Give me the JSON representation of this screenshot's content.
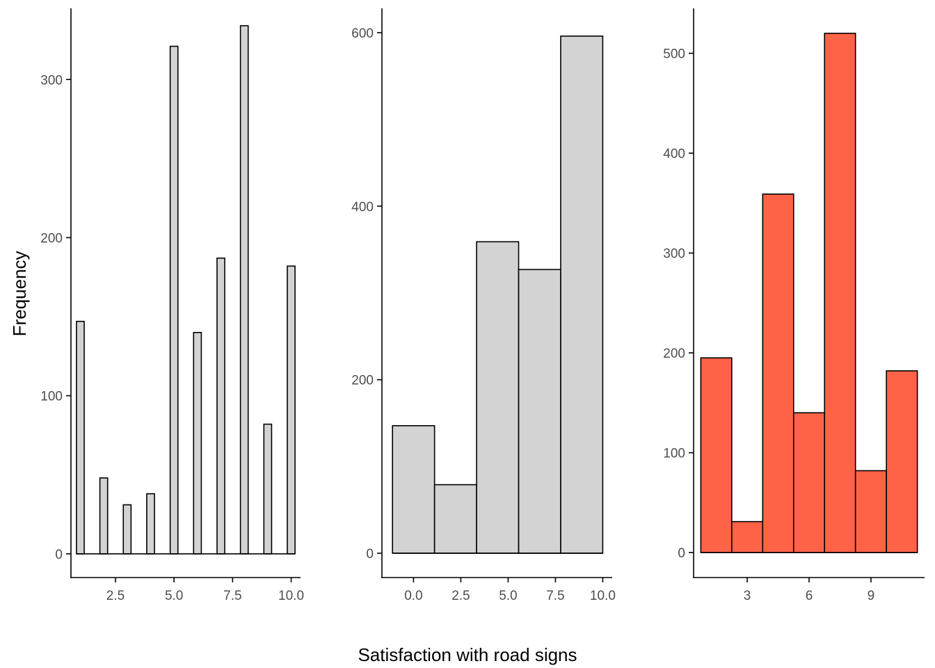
{
  "figure": {
    "ylabel": "Frequency",
    "xlabel": "Satisfaction with road signs"
  },
  "colors": {
    "bar_outline": "#000000",
    "axis": "#000000",
    "tick_text": "#4d4d4d"
  },
  "chart_data": [
    {
      "type": "bar",
      "fill": "#d3d3d3",
      "xlim": [
        0.6,
        10.4
      ],
      "ylim": [
        -15,
        345
      ],
      "xticks": [
        2.5,
        5.0,
        7.5,
        10.0
      ],
      "xtick_labels": [
        "2.5",
        "5.0",
        "7.5",
        "10.0"
      ],
      "yticks": [
        0,
        100,
        200,
        300
      ],
      "ytick_labels": [
        "0",
        "100",
        "200",
        "300"
      ],
      "bin_width": 0.33,
      "bins": [
        {
          "x": 1,
          "y": 147
        },
        {
          "x": 2,
          "y": 48
        },
        {
          "x": 3,
          "y": 31
        },
        {
          "x": 4,
          "y": 38
        },
        {
          "x": 5,
          "y": 321
        },
        {
          "x": 6,
          "y": 140
        },
        {
          "x": 7,
          "y": 187
        },
        {
          "x": 8,
          "y": 334
        },
        {
          "x": 9,
          "y": 82
        },
        {
          "x": 10,
          "y": 182
        }
      ]
    },
    {
      "type": "bar",
      "fill": "#d3d3d3",
      "xlim": [
        -1.67,
        10.5
      ],
      "ylim": [
        -28,
        628
      ],
      "xticks": [
        0.0,
        2.5,
        5.0,
        7.5,
        10.0
      ],
      "xtick_labels": [
        "0.0",
        "2.5",
        "5.0",
        "7.5",
        "10.0"
      ],
      "yticks": [
        0,
        200,
        400,
        600
      ],
      "ytick_labels": [
        "0",
        "200",
        "400",
        "600"
      ],
      "bin_width": 2.222,
      "bins": [
        {
          "x": 0.0,
          "y": 147
        },
        {
          "x": 2.222,
          "y": 79
        },
        {
          "x": 4.444,
          "y": 359
        },
        {
          "x": 6.667,
          "y": 327
        },
        {
          "x": 8.889,
          "y": 596
        }
      ]
    },
    {
      "type": "bar",
      "fill": "#ff6347",
      "xlim": [
        0.4,
        11.6
      ],
      "ylim": [
        -25,
        545
      ],
      "xticks": [
        3,
        6,
        9
      ],
      "xtick_labels": [
        "3",
        "6",
        "9"
      ],
      "yticks": [
        0,
        100,
        200,
        300,
        400,
        500
      ],
      "ytick_labels": [
        "0",
        "100",
        "200",
        "300",
        "400",
        "500"
      ],
      "bin_width": 1.5,
      "bins": [
        {
          "x": 1.5,
          "y": 195
        },
        {
          "x": 3.0,
          "y": 31
        },
        {
          "x": 4.5,
          "y": 359
        },
        {
          "x": 6.0,
          "y": 140
        },
        {
          "x": 7.5,
          "y": 520
        },
        {
          "x": 9.0,
          "y": 82
        },
        {
          "x": 10.5,
          "y": 182
        }
      ]
    }
  ]
}
